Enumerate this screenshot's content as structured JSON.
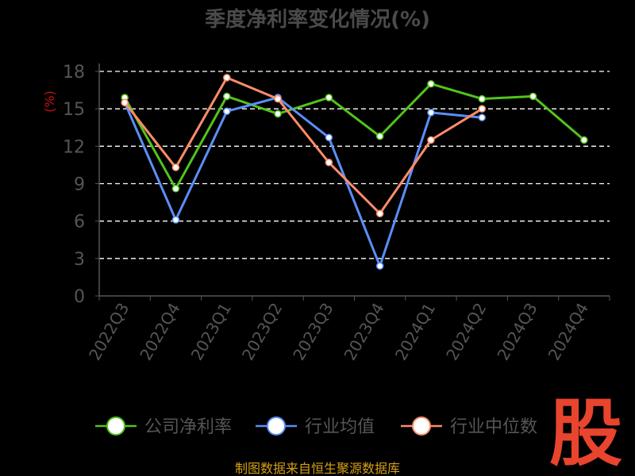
{
  "chart_data": {
    "type": "line",
    "title": "季度净利率变化情况(%)",
    "ylabel": "(%)",
    "xlabel": "",
    "ylim": [
      0,
      18
    ],
    "yticks": [
      0,
      3,
      6,
      9,
      12,
      15,
      18
    ],
    "grid": true,
    "legend_position": "bottom",
    "categories": [
      "2022Q3",
      "2022Q4",
      "2023Q1",
      "2023Q2",
      "2023Q3",
      "2023Q4",
      "2024Q1",
      "2024Q2",
      "2024Q3",
      "2024Q4"
    ],
    "series": [
      {
        "name": "公司净利率",
        "color": "#52c41a",
        "values": [
          15.9,
          8.6,
          16.0,
          14.6,
          15.9,
          12.8,
          17.0,
          15.8,
          16.0,
          12.5
        ]
      },
      {
        "name": "行业均值",
        "color": "#5b8ff9",
        "values": [
          15.5,
          6.1,
          14.8,
          15.9,
          12.7,
          2.4,
          14.7,
          14.3,
          null,
          null
        ]
      },
      {
        "name": "行业中位数",
        "color": "#ff8c69",
        "values": [
          15.5,
          10.3,
          17.5,
          15.8,
          10.7,
          6.6,
          12.5,
          15.0,
          null,
          null
        ]
      }
    ]
  },
  "footer": {
    "source": "制图数据来自恒生聚源数据库",
    "logo_char": "股"
  }
}
